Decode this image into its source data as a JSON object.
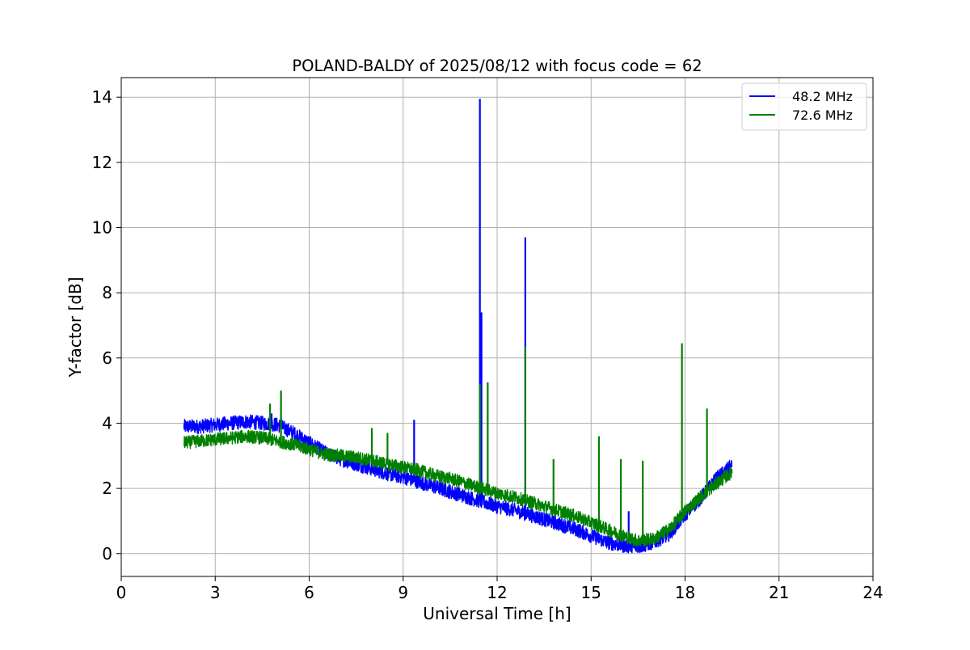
{
  "chart_data": {
    "type": "line",
    "title": "POLAND-BALDY of 2025/08/12 with focus code = 62",
    "xlabel": "Universal Time [h]",
    "ylabel": "Y-factor [dB]",
    "xlim": [
      0,
      24
    ],
    "ylim": [
      -0.7,
      14.6
    ],
    "xticks": [
      0,
      3,
      6,
      9,
      12,
      15,
      18,
      21,
      24
    ],
    "yticks": [
      0,
      2,
      4,
      6,
      8,
      10,
      12,
      14
    ],
    "grid": true,
    "legend_position": "top-right",
    "series": [
      {
        "name": "48.2 MHz",
        "color": "#0000ff",
        "noise_amplitude": 0.22,
        "x": [
          2.0,
          2.5,
          3.0,
          3.5,
          4.0,
          4.5,
          5.0,
          5.5,
          6.0,
          6.5,
          7.0,
          7.5,
          8.0,
          8.5,
          9.0,
          9.5,
          10.0,
          10.5,
          11.0,
          11.5,
          12.0,
          12.5,
          13.0,
          13.5,
          14.0,
          14.5,
          15.0,
          15.5,
          16.0,
          16.5,
          17.0,
          17.5,
          18.0,
          18.5,
          19.0,
          19.5
        ],
        "y": [
          3.9,
          3.9,
          3.95,
          4.0,
          4.05,
          4.0,
          3.95,
          3.7,
          3.4,
          3.1,
          2.9,
          2.75,
          2.6,
          2.45,
          2.35,
          2.2,
          2.05,
          1.9,
          1.75,
          1.6,
          1.45,
          1.35,
          1.2,
          1.05,
          0.9,
          0.75,
          0.55,
          0.35,
          0.25,
          0.2,
          0.35,
          0.6,
          1.2,
          1.7,
          2.3,
          2.7
        ],
        "spikes": [
          [
            4.8,
            4.3
          ],
          [
            5.1,
            4.2
          ],
          [
            9.35,
            4.1
          ],
          [
            11.45,
            13.95
          ],
          [
            11.5,
            7.4
          ],
          [
            12.9,
            9.7
          ],
          [
            16.2,
            1.3
          ]
        ]
      },
      {
        "name": "72.6 MHz",
        "color": "#008000",
        "noise_amplitude": 0.2,
        "x": [
          2.0,
          2.5,
          3.0,
          3.5,
          4.0,
          4.5,
          5.0,
          5.5,
          6.0,
          6.5,
          7.0,
          7.5,
          8.0,
          8.5,
          9.0,
          9.5,
          10.0,
          10.5,
          11.0,
          11.5,
          12.0,
          12.5,
          13.0,
          13.5,
          14.0,
          14.5,
          15.0,
          15.5,
          16.0,
          16.5,
          17.0,
          17.5,
          18.0,
          18.5,
          19.0,
          19.5
        ],
        "y": [
          3.4,
          3.45,
          3.5,
          3.55,
          3.6,
          3.55,
          3.45,
          3.35,
          3.2,
          3.05,
          3.0,
          2.95,
          2.85,
          2.75,
          2.65,
          2.55,
          2.4,
          2.3,
          2.15,
          2.0,
          1.85,
          1.75,
          1.6,
          1.45,
          1.3,
          1.15,
          0.95,
          0.75,
          0.55,
          0.4,
          0.45,
          0.75,
          1.3,
          1.75,
          2.15,
          2.5
        ],
        "spikes": [
          [
            4.75,
            4.6
          ],
          [
            5.1,
            5.0
          ],
          [
            8.0,
            3.85
          ],
          [
            8.5,
            3.7
          ],
          [
            11.45,
            5.2
          ],
          [
            11.7,
            5.25
          ],
          [
            12.9,
            6.35
          ],
          [
            13.8,
            2.9
          ],
          [
            15.25,
            3.6
          ],
          [
            15.95,
            2.9
          ],
          [
            16.65,
            2.85
          ],
          [
            17.9,
            6.45
          ],
          [
            18.7,
            4.45
          ]
        ]
      }
    ]
  }
}
